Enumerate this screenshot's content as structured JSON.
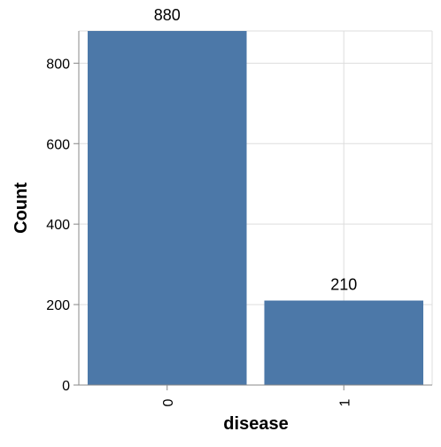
{
  "chart_data": {
    "type": "bar",
    "categories": [
      "0",
      "1"
    ],
    "values": [
      880,
      210
    ],
    "data_labels": [
      "880",
      "210"
    ],
    "title": "",
    "xlabel": "disease",
    "ylabel": "Count",
    "ylim": [
      0,
      880
    ],
    "yticks": [
      0,
      200,
      400,
      600,
      800
    ],
    "ytick_labels": [
      "0",
      "200",
      "400",
      "600",
      "800"
    ],
    "grid": true,
    "legend": "none",
    "bar_color": "#4c78a8"
  }
}
